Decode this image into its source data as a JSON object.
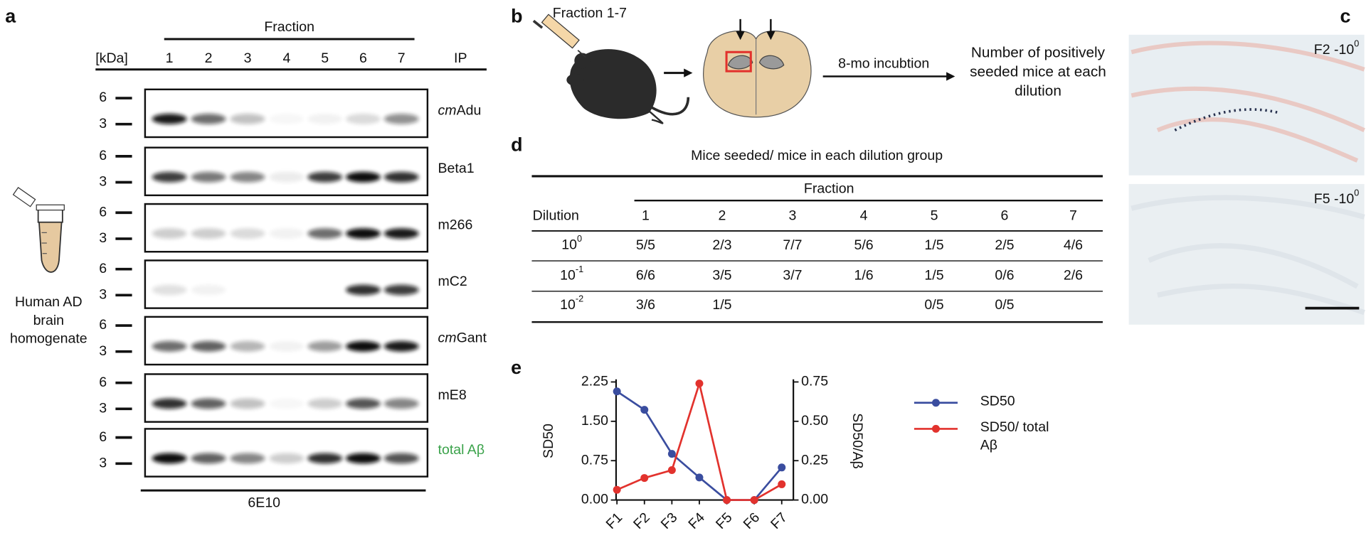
{
  "panel_a": {
    "label": "a",
    "fraction_title": "Fraction",
    "kda_label": "[kDa]",
    "lanes": [
      "1",
      "2",
      "3",
      "4",
      "5",
      "6",
      "7"
    ],
    "ip_label": "IP",
    "mw_markers": [
      "6",
      "3"
    ],
    "blots": [
      {
        "prefix": "cm",
        "name": "Adu"
      },
      {
        "name": "Beta1"
      },
      {
        "name": "m266"
      },
      {
        "name": "mC2"
      },
      {
        "prefix": "cm",
        "name": "Gant"
      },
      {
        "name": "mE8"
      },
      {
        "name": "total Aβ"
      }
    ],
    "tube_label": "Human AD brain homogenate",
    "footer": "6E10"
  },
  "panel_b": {
    "label": "b",
    "injection": "Fraction 1-7",
    "incubation": "8-mo incubtion",
    "readout": "Number of positively seeded mice at each dilution"
  },
  "panel_c": {
    "label": "c",
    "images": [
      {
        "text": "F2 -10",
        "sup": "0"
      },
      {
        "text": "F5 -10",
        "sup": "0"
      }
    ]
  },
  "panel_d": {
    "label": "d",
    "title": "Mice seeded/ mice in each dilution group",
    "fraction_title": "Fraction",
    "dilution_header": "Dilution",
    "columns": [
      "1",
      "2",
      "3",
      "4",
      "5",
      "6",
      "7"
    ],
    "rows": [
      {
        "dilution": {
          "base": "10",
          "exp": "0"
        },
        "cells": [
          "5/5",
          "2/3",
          "7/7",
          "5/6",
          "1/5",
          "2/5",
          "4/6"
        ]
      },
      {
        "dilution": {
          "base": "10",
          "exp": "-1"
        },
        "cells": [
          "6/6",
          "3/5",
          "3/7",
          "1/6",
          "1/5",
          "0/6",
          "2/6"
        ]
      },
      {
        "dilution": {
          "base": "10",
          "exp": "-2"
        },
        "cells": [
          "3/6",
          "1/5",
          null,
          null,
          "0/5",
          "0/5",
          null
        ]
      }
    ]
  },
  "chart_data": {
    "type": "line",
    "label": "e",
    "categories": [
      "F1",
      "F2",
      "F3",
      "F4",
      "F5",
      "F6",
      "F7"
    ],
    "series": [
      {
        "name": "SD50",
        "color": "#3a4d9f",
        "values": [
          2.07,
          1.72,
          0.88,
          0.43,
          0,
          0,
          0.62
        ]
      },
      {
        "name": "SD50/ total Aβ",
        "color": "#e2322d",
        "axis": "y2",
        "values": [
          0.065,
          0.14,
          0.19,
          0.74,
          0,
          0,
          0.1
        ]
      }
    ],
    "ylabel": "SD50",
    "y2label": "SD50/Aβ",
    "ylim": [
      0,
      2.25
    ],
    "yticks": [
      {
        "value": 0,
        "label": "0.00"
      },
      {
        "value": 0.75,
        "label": "0.75"
      },
      {
        "value": 1.5,
        "label": "1.50"
      },
      {
        "value": 2.25,
        "label": "2.25"
      }
    ],
    "y2lim": [
      0,
      0.75
    ],
    "y2ticks": [
      {
        "value": 0,
        "label": "0.00"
      },
      {
        "value": 0.25,
        "label": "0.25"
      },
      {
        "value": 0.5,
        "label": "0.50"
      },
      {
        "value": 0.75,
        "label": "0.75"
      }
    ]
  }
}
